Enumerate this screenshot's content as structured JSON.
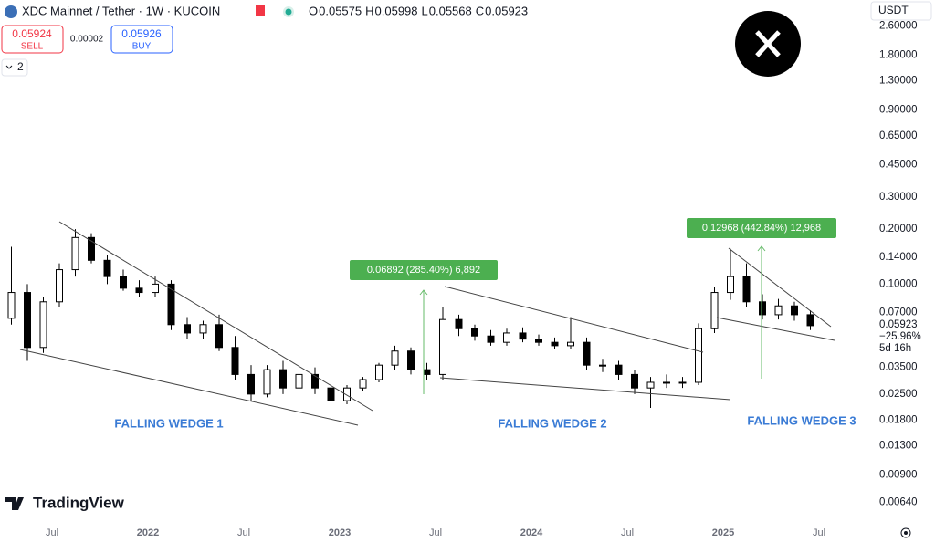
{
  "header": {
    "title": "XDC Mainnet / Tether · 1W · KUCOIN",
    "ohlc": [
      {
        "label": "O",
        "value": 0.05575
      },
      {
        "label": "H",
        "value": 0.05998
      },
      {
        "label": "L",
        "value": 0.05568
      },
      {
        "label": "C",
        "value": 0.05923
      }
    ],
    "sell_price": 0.05924,
    "sell": "SELL",
    "spread": 2e-05,
    "buy_price": 0.05926,
    "buy": "BUY",
    "indicators": "2",
    "currency": "USDT",
    "last_price": 0.05923,
    "change": "−25.96%",
    "countdown": "5d 16h",
    "brand": "TradingView"
  },
  "chart_data": {
    "type": "candlestick",
    "log_scale": true,
    "up_color": "#ffffff",
    "down_color": "#000000",
    "x": [
      "2021-04",
      "2021-05",
      "2021-06",
      "2021-07",
      "2021-08",
      "2021-09",
      "2021-10",
      "2021-11",
      "2021-12",
      "2022-01",
      "2022-02",
      "2022-03",
      "2022-04",
      "2022-05",
      "2022-06",
      "2022-07",
      "2022-08",
      "2022-09",
      "2022-10",
      "2022-11",
      "2022-12",
      "2023-01",
      "2023-02",
      "2023-03",
      "2023-04",
      "2023-05",
      "2023-06",
      "2023-07",
      "2023-08",
      "2023-09",
      "2023-10",
      "2023-11",
      "2023-12",
      "2024-01",
      "2024-02",
      "2024-03",
      "2024-04",
      "2024-05",
      "2024-06",
      "2024-07",
      "2024-08",
      "2024-09",
      "2024-10",
      "2024-11",
      "2024-12",
      "2025-01",
      "2025-02",
      "2025-03",
      "2025-04",
      "2025-05",
      "2025-06"
    ],
    "open": [
      0.065,
      0.09,
      0.045,
      0.08,
      0.12,
      0.18,
      0.135,
      0.11,
      0.095,
      0.09,
      0.1,
      0.06,
      0.054,
      0.06,
      0.045,
      0.032,
      0.025,
      0.034,
      0.027,
      0.032,
      0.027,
      0.023,
      0.027,
      0.03,
      0.036,
      0.043,
      0.034,
      0.032,
      0.064,
      0.057,
      0.052,
      0.048,
      0.054,
      0.05,
      0.048,
      0.046,
      0.048,
      0.036,
      0.036,
      0.032,
      0.027,
      0.029,
      0.029,
      0.029,
      0.057,
      0.09,
      0.11,
      0.08,
      0.068,
      0.076,
      0.068
    ],
    "high": [
      0.16,
      0.1,
      0.085,
      0.13,
      0.2,
      0.19,
      0.145,
      0.12,
      0.105,
      0.11,
      0.105,
      0.066,
      0.063,
      0.068,
      0.052,
      0.036,
      0.036,
      0.038,
      0.034,
      0.035,
      0.03,
      0.028,
      0.031,
      0.037,
      0.046,
      0.045,
      0.037,
      0.075,
      0.068,
      0.06,
      0.056,
      0.057,
      0.058,
      0.053,
      0.051,
      0.066,
      0.051,
      0.039,
      0.038,
      0.034,
      0.031,
      0.032,
      0.031,
      0.061,
      0.097,
      0.156,
      0.13,
      0.088,
      0.083,
      0.08,
      0.072
    ],
    "low": [
      0.06,
      0.038,
      0.042,
      0.075,
      0.11,
      0.13,
      0.1,
      0.092,
      0.085,
      0.085,
      0.056,
      0.05,
      0.05,
      0.043,
      0.03,
      0.023,
      0.024,
      0.025,
      0.025,
      0.025,
      0.021,
      0.022,
      0.026,
      0.029,
      0.034,
      0.032,
      0.03,
      0.03,
      0.052,
      0.049,
      0.046,
      0.046,
      0.048,
      0.046,
      0.044,
      0.044,
      0.034,
      0.033,
      0.03,
      0.025,
      0.021,
      0.027,
      0.027,
      0.028,
      0.054,
      0.082,
      0.075,
      0.064,
      0.064,
      0.063,
      0.056
    ],
    "close": [
      0.09,
      0.045,
      0.08,
      0.12,
      0.18,
      0.135,
      0.11,
      0.095,
      0.09,
      0.1,
      0.06,
      0.054,
      0.06,
      0.045,
      0.032,
      0.025,
      0.034,
      0.027,
      0.032,
      0.027,
      0.023,
      0.027,
      0.03,
      0.036,
      0.043,
      0.034,
      0.032,
      0.064,
      0.057,
      0.052,
      0.048,
      0.054,
      0.05,
      0.048,
      0.046,
      0.048,
      0.036,
      0.036,
      0.032,
      0.027,
      0.029,
      0.029,
      0.029,
      0.057,
      0.09,
      0.11,
      0.08,
      0.068,
      0.076,
      0.068,
      0.05923
    ],
    "ylim": [
      0.0051,
      3.6
    ],
    "yticks": [
      {
        "value": 0.0064,
        "label": "0.00640"
      },
      {
        "value": 0.009,
        "label": "0.00900"
      },
      {
        "value": 0.013,
        "label": "0.01300"
      },
      {
        "value": 0.018,
        "label": "0.01800"
      },
      {
        "value": 0.025,
        "label": "0.02500"
      },
      {
        "value": 0.035,
        "label": "0.03500"
      },
      {
        "value": 0.07,
        "label": "0.07000"
      },
      {
        "value": 0.1,
        "label": "0.10000"
      },
      {
        "value": 0.14,
        "label": "0.14000"
      },
      {
        "value": 0.2,
        "label": "0.20000"
      },
      {
        "value": 0.3,
        "label": "0.30000"
      },
      {
        "value": 0.45,
        "label": "0.45000"
      },
      {
        "value": 0.65,
        "label": "0.65000"
      },
      {
        "value": 0.9,
        "label": "0.90000"
      },
      {
        "value": 1.3,
        "label": "1.30000"
      },
      {
        "value": 1.8,
        "label": "1.80000"
      },
      {
        "value": 2.6,
        "label": "2.60000"
      }
    ],
    "xticks": [
      {
        "value": "2021-07",
        "label": "Jul"
      },
      {
        "value": "2022-01",
        "label": "2022"
      },
      {
        "value": "2022-07",
        "label": "Jul"
      },
      {
        "value": "2023-01",
        "label": "2023"
      },
      {
        "value": "2023-07",
        "label": "Jul"
      },
      {
        "value": "2024-01",
        "label": "2024"
      },
      {
        "value": "2024-07",
        "label": "Jul"
      },
      {
        "value": "2025-01",
        "label": "2025"
      },
      {
        "value": "2025-07",
        "label": "Jul"
      }
    ],
    "annotations": [
      "0.06892 (285.40%) 6,892",
      "0.12968 (442.84%) 12,968"
    ],
    "patterns": [
      "FALLING WEDGE 1",
      "FALLING WEDGE 2",
      "FALLING WEDGE 3"
    ]
  }
}
